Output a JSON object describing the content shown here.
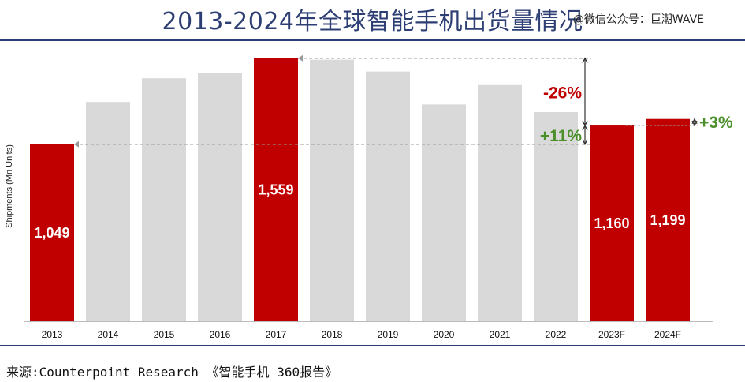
{
  "header": {
    "title": "2013-2024年全球智能手机出货量情况",
    "watermark": "@微信公众号：巨潮WAVE"
  },
  "footer": {
    "source": "来源:Counterpoint Research 《智能手机 360报告》"
  },
  "colors": {
    "highlight": "#c00000",
    "muted": "#d9d9d9",
    "negative": "#c00000",
    "positive": "#4a8f2a",
    "title": "#2c3e73"
  },
  "chart_data": {
    "type": "bar",
    "ylabel": "Shipments (Mn Units)",
    "categories": [
      "2013",
      "2014",
      "2015",
      "2016",
      "2017",
      "2018",
      "2019",
      "2020",
      "2021",
      "2022",
      "2023F",
      "2024F"
    ],
    "values": [
      1049,
      1300,
      1440,
      1470,
      1559,
      1550,
      1480,
      1285,
      1400,
      1240,
      1160,
      1199
    ],
    "highlighted": [
      true,
      false,
      false,
      false,
      true,
      false,
      false,
      false,
      false,
      false,
      true,
      true
    ],
    "data_labels": [
      "1,049",
      "",
      "",
      "",
      "1,559",
      "",
      "",
      "",
      "",
      "",
      "1,160",
      "1,199"
    ],
    "ylim": [
      0,
      1600
    ],
    "grid": false,
    "annotations": [
      {
        "text": "-26%",
        "from": "2017",
        "to": "2023F",
        "kind": "negative"
      },
      {
        "text": "+11%",
        "from": "2013",
        "to": "2023F",
        "kind": "positive"
      },
      {
        "text": "+3%",
        "from": "2023F",
        "to": "2024F",
        "kind": "positive"
      }
    ]
  }
}
